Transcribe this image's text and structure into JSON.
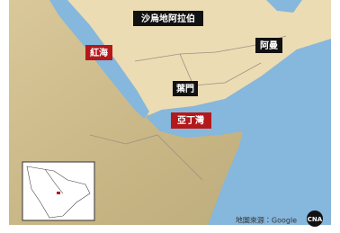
{
  "labels": {
    "saudi": "沙烏地阿拉伯",
    "red_sea": "紅海",
    "oman": "阿曼",
    "yemen": "葉門",
    "gulf_of_aden": "亞丁灣"
  },
  "source": "地圖來源：Google",
  "logo": "CNA"
}
